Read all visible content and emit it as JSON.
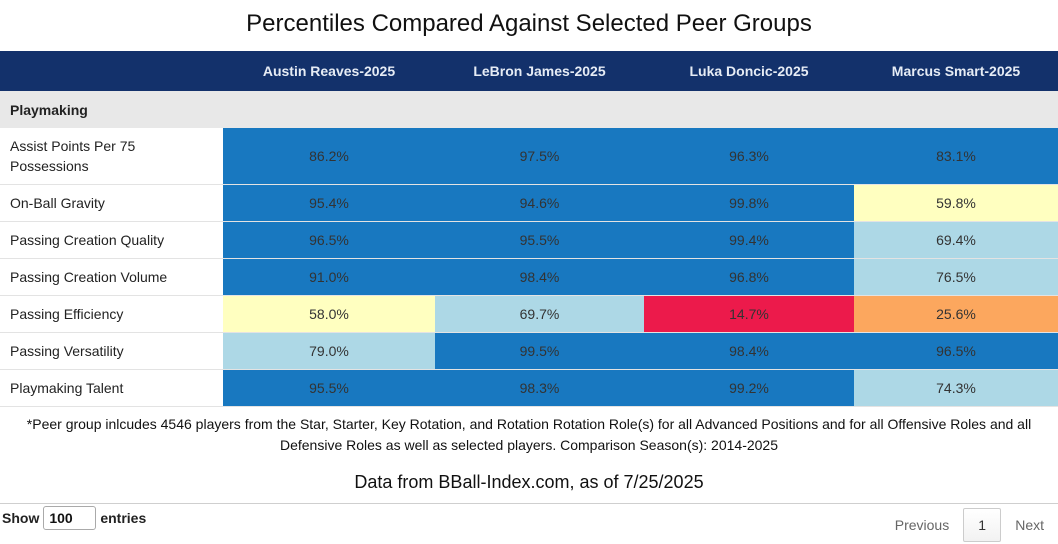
{
  "title": "Percentiles Compared Against Selected Peer Groups",
  "chart_data": {
    "type": "table",
    "title": "Percentiles Compared Against Selected Peer Groups",
    "columns": [
      "",
      "Austin Reaves-2025",
      "LeBron James-2025",
      "Luka Doncic-2025",
      "Marcus Smart-2025"
    ],
    "section": "Playmaking",
    "rows": [
      {
        "label": "Assist Points Per 75 Possessions",
        "values": [
          "86.2%",
          "97.5%",
          "96.3%",
          "83.1%"
        ],
        "colors": [
          "#1878c0",
          "#1878c0",
          "#1878c0",
          "#1878c0"
        ]
      },
      {
        "label": "On-Ball Gravity",
        "values": [
          "95.4%",
          "94.6%",
          "99.8%",
          "59.8%"
        ],
        "colors": [
          "#1878c0",
          "#1878c0",
          "#1878c0",
          "#ffffc0"
        ]
      },
      {
        "label": "Passing Creation Quality",
        "values": [
          "96.5%",
          "95.5%",
          "99.4%",
          "69.4%"
        ],
        "colors": [
          "#1878c0",
          "#1878c0",
          "#1878c0",
          "#add8e6"
        ]
      },
      {
        "label": "Passing Creation Volume",
        "values": [
          "91.0%",
          "98.4%",
          "96.8%",
          "76.5%"
        ],
        "colors": [
          "#1878c0",
          "#1878c0",
          "#1878c0",
          "#add8e6"
        ]
      },
      {
        "label": "Passing Efficiency",
        "values": [
          "58.0%",
          "69.7%",
          "14.7%",
          "25.6%"
        ],
        "colors": [
          "#ffffc0",
          "#add8e6",
          "#ec1a4b",
          "#fca75e"
        ]
      },
      {
        "label": "Passing Versatility",
        "values": [
          "79.0%",
          "99.5%",
          "98.4%",
          "96.5%"
        ],
        "colors": [
          "#add8e6",
          "#1878c0",
          "#1878c0",
          "#1878c0"
        ]
      },
      {
        "label": "Playmaking Talent",
        "values": [
          "95.5%",
          "98.3%",
          "99.2%",
          "74.3%"
        ],
        "colors": [
          "#1878c0",
          "#1878c0",
          "#1878c0",
          "#add8e6"
        ]
      }
    ]
  },
  "footnote": "*Peer group inlcudes 4546 players from the Star, Starter, Key Rotation, and Rotation Rotation Role(s) for all Advanced Positions and for all Offensive Roles and all Defensive Roles as well as selected players. Comparison Season(s): 2014-2025",
  "source": "Data from BBall-Index.com, as of 7/25/2025",
  "controls": {
    "show_label": "Show",
    "entries_value": "100",
    "entries_label": "entries",
    "previous": "Previous",
    "page": "1",
    "next": "Next"
  }
}
